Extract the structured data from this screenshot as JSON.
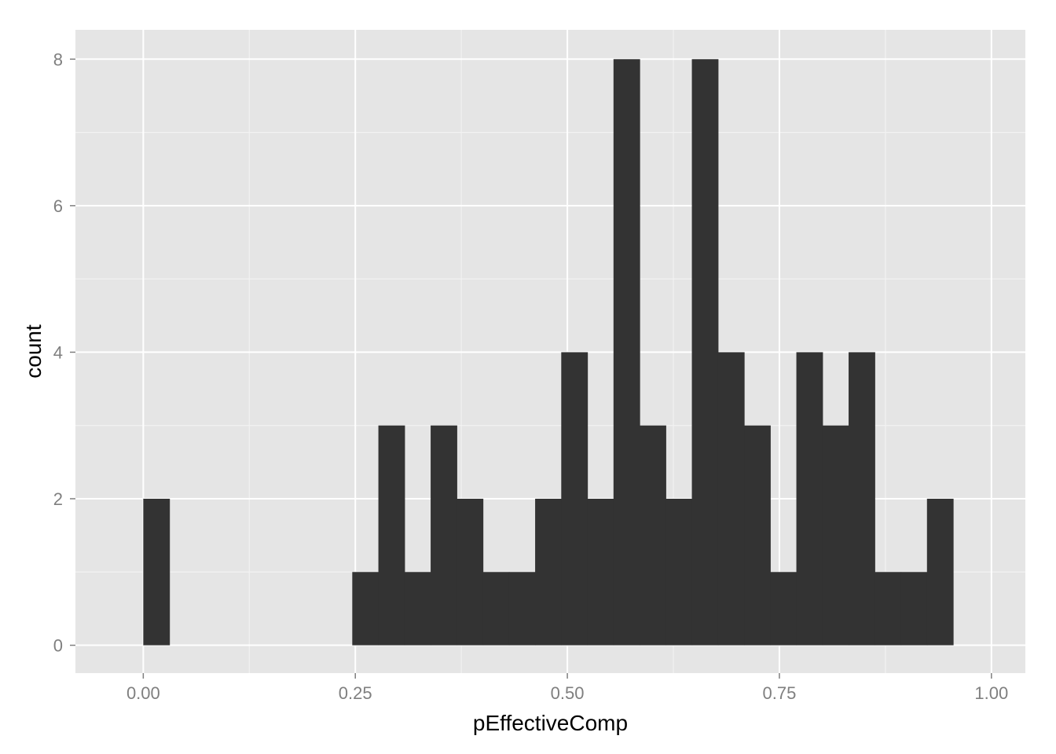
{
  "chart_data": {
    "type": "bar",
    "subtype": "histogram",
    "title": "",
    "xlabel": "pEffectiveComp",
    "ylabel": "count",
    "bin_width": 0.0308,
    "bins": [
      {
        "x0": 0.0,
        "x1": 0.0308,
        "count": 2
      },
      {
        "x0": 0.0308,
        "x1": 0.0616,
        "count": 0
      },
      {
        "x0": 0.0616,
        "x1": 0.0924,
        "count": 0
      },
      {
        "x0": 0.0924,
        "x1": 0.1232,
        "count": 0
      },
      {
        "x0": 0.1232,
        "x1": 0.154,
        "count": 0
      },
      {
        "x0": 0.154,
        "x1": 0.1848,
        "count": 0
      },
      {
        "x0": 0.1848,
        "x1": 0.2156,
        "count": 0
      },
      {
        "x0": 0.2156,
        "x1": 0.2464,
        "count": 0
      },
      {
        "x0": 0.2464,
        "x1": 0.2772,
        "count": 1
      },
      {
        "x0": 0.2772,
        "x1": 0.308,
        "count": 3
      },
      {
        "x0": 0.308,
        "x1": 0.3388,
        "count": 1
      },
      {
        "x0": 0.3388,
        "x1": 0.3696,
        "count": 3
      },
      {
        "x0": 0.3696,
        "x1": 0.4004,
        "count": 2
      },
      {
        "x0": 0.4004,
        "x1": 0.4312,
        "count": 1
      },
      {
        "x0": 0.4312,
        "x1": 0.462,
        "count": 1
      },
      {
        "x0": 0.462,
        "x1": 0.4928,
        "count": 2
      },
      {
        "x0": 0.4928,
        "x1": 0.5236,
        "count": 4
      },
      {
        "x0": 0.5236,
        "x1": 0.5544,
        "count": 2
      },
      {
        "x0": 0.5544,
        "x1": 0.5852,
        "count": 8
      },
      {
        "x0": 0.5852,
        "x1": 0.616,
        "count": 3
      },
      {
        "x0": 0.616,
        "x1": 0.6468,
        "count": 2
      },
      {
        "x0": 0.6468,
        "x1": 0.6776,
        "count": 8
      },
      {
        "x0": 0.6776,
        "x1": 0.7084,
        "count": 4
      },
      {
        "x0": 0.7084,
        "x1": 0.7392,
        "count": 3
      },
      {
        "x0": 0.7392,
        "x1": 0.77,
        "count": 1
      },
      {
        "x0": 0.77,
        "x1": 0.8008,
        "count": 4
      },
      {
        "x0": 0.8008,
        "x1": 0.8316,
        "count": 3
      },
      {
        "x0": 0.8316,
        "x1": 0.8624,
        "count": 4
      },
      {
        "x0": 0.8624,
        "x1": 0.8932,
        "count": 1
      },
      {
        "x0": 0.8932,
        "x1": 0.924,
        "count": 1
      },
      {
        "x0": 0.924,
        "x1": 0.9548,
        "count": 2
      }
    ],
    "xlim": [
      -0.08,
      1.04
    ],
    "ylim": [
      -0.38,
      8.4
    ],
    "x_ticks": [
      {
        "value": 0.0,
        "label": "0.00"
      },
      {
        "value": 0.25,
        "label": "0.25"
      },
      {
        "value": 0.5,
        "label": "0.50"
      },
      {
        "value": 0.75,
        "label": "0.75"
      },
      {
        "value": 1.0,
        "label": "1.00"
      }
    ],
    "y_ticks": [
      {
        "value": 0,
        "label": "0"
      },
      {
        "value": 2,
        "label": "2"
      },
      {
        "value": 4,
        "label": "4"
      },
      {
        "value": 6,
        "label": "6"
      },
      {
        "value": 8,
        "label": "8"
      }
    ],
    "grid": true,
    "legend": "none",
    "colors": {
      "panel_background": "#e5e5e5",
      "grid_major": "#ffffff",
      "grid_minor": "#f2f2f2",
      "bar_fill": "#333333",
      "tick_text": "#7f7f7f",
      "tick_mark": "#7f7f7f",
      "axis_title": "#000000"
    }
  }
}
